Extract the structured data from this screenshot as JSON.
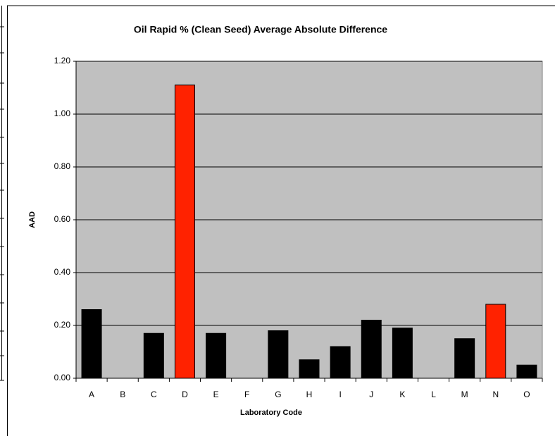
{
  "chart_data": {
    "type": "bar",
    "title": "Oil Rapid % (Clean Seed) Average Absolute Difference",
    "xlabel": "Laboratory Code",
    "ylabel": "AAD",
    "categories": [
      "A",
      "B",
      "C",
      "D",
      "E",
      "F",
      "G",
      "H",
      "I",
      "J",
      "K",
      "L",
      "M",
      "N",
      "O"
    ],
    "values": [
      0.26,
      0,
      0.17,
      1.11,
      0.17,
      0,
      0.18,
      0.07,
      0.12,
      0.22,
      0.19,
      0,
      0.15,
      0.28,
      0.05
    ],
    "colors": [
      "#000000",
      "#000000",
      "#000000",
      "#ff2200",
      "#000000",
      "#000000",
      "#000000",
      "#000000",
      "#000000",
      "#000000",
      "#000000",
      "#000000",
      "#000000",
      "#ff2200",
      "#000000"
    ],
    "ylim": [
      0,
      1.2
    ],
    "yticks": [
      {
        "value": 0,
        "label": "0.00"
      },
      {
        "value": 0.2,
        "label": "0.20"
      },
      {
        "value": 0.4,
        "label": "0.40"
      },
      {
        "value": 0.6,
        "label": "0.60"
      },
      {
        "value": 0.8,
        "label": "0.80"
      },
      {
        "value": 1.0,
        "label": "1.00"
      },
      {
        "value": 1.2,
        "label": "1.20"
      }
    ],
    "grid": true,
    "plot_background": "#c0c0c0"
  }
}
